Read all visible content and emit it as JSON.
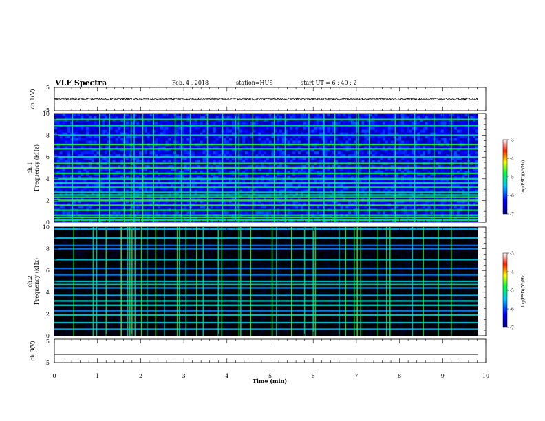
{
  "header": {
    "title": "VLF Spectra",
    "date": "Feb. 4 , 2018",
    "station": "station=HUS",
    "start": "start UT = 6 : 40 : 2"
  },
  "chart_data": [
    {
      "type": "line",
      "panel": "ch1-waveform",
      "ylabel": "ch.1(V)",
      "ylim": [
        -5,
        5
      ],
      "yticks": [
        "5",
        "-5"
      ],
      "x_range": [
        0,
        10
      ],
      "series": [
        {
          "values_description_level": 0,
          "amplitude": 0.45
        }
      ]
    },
    {
      "type": "heatmap",
      "panel": "ch1-spectrogram",
      "ylabel": "ch.1\nFrequency (kHz)",
      "ylim": [
        0,
        10
      ],
      "yticks": [
        "0",
        "2",
        "4",
        "6",
        "8",
        "10"
      ],
      "x_range": [
        0,
        9.82
      ],
      "colorbar": {
        "label": "log(PSD)(V²/Hz)",
        "range": [
          -7,
          -3
        ],
        "ticks": [
          "-3",
          "-4",
          "-5",
          "-6",
          "-7"
        ]
      },
      "background_level": -6.4,
      "bands_khz": [
        0.2,
        0.45,
        0.65,
        1.1,
        1.55,
        2.0,
        2.3,
        2.5,
        2.75,
        3.2,
        3.6,
        4.0,
        4.5,
        5.0,
        5.4,
        6.0,
        6.75,
        7.15,
        8.0,
        8.9,
        9.45
      ],
      "spikes_min": [
        0.42,
        1.05,
        1.28,
        1.62,
        1.78,
        1.85,
        2.05,
        2.3,
        2.8,
        2.95,
        3.15,
        3.55,
        3.9,
        4.2,
        4.28,
        4.6,
        5.1,
        5.35,
        5.9,
        6.25,
        6.5,
        7.0,
        7.05,
        7.3,
        7.9,
        8.35,
        8.8,
        9.2,
        9.6
      ]
    },
    {
      "type": "heatmap",
      "panel": "ch2-spectrogram",
      "ylabel": "ch.2\nFrequency (kHz)",
      "ylim": [
        0,
        10
      ],
      "yticks": [
        "0",
        "2",
        "4",
        "6",
        "8",
        "10"
      ],
      "x_range": [
        0,
        9.82
      ],
      "colorbar": {
        "label": "log(PSD)(V²/Hz)",
        "range": [
          -7,
          -3
        ],
        "ticks": [
          "-3",
          "-4",
          "-5",
          "-6",
          "-7"
        ]
      },
      "background_level": -7,
      "bands_khz": [
        0.6,
        1.2,
        1.9,
        2.3,
        2.8,
        3.2,
        3.7,
        4.4,
        4.7,
        5.0,
        5.6,
        6.2,
        7.0,
        8.0,
        8.3,
        9.0,
        9.8
      ],
      "spikes_min": [
        0.45,
        0.9,
        0.98,
        1.2,
        1.55,
        1.7,
        1.75,
        1.8,
        1.87,
        2.02,
        2.15,
        2.35,
        2.55,
        2.85,
        2.9,
        3.05,
        3.3,
        3.45,
        3.8,
        3.88,
        4.28,
        4.32,
        4.55,
        5.05,
        5.15,
        5.5,
        5.8,
        6.0,
        6.05,
        6.6,
        6.75,
        6.95,
        7.02,
        7.1,
        7.5,
        7.7,
        7.78,
        8.3,
        8.55,
        8.9,
        9.2
      ]
    },
    {
      "type": "line",
      "panel": "ch3-waveform",
      "ylabel": "ch.3(V)",
      "ylim": [
        -5,
        5
      ],
      "yticks": [
        "5",
        "-5"
      ],
      "x_range": [
        0,
        9.82
      ],
      "series": [
        {
          "level": -1.5
        }
      ]
    }
  ],
  "xaxis": {
    "label": "Time (min)",
    "ticks": [
      "0",
      "1",
      "2",
      "3",
      "4",
      "5",
      "6",
      "7",
      "8",
      "9",
      "10"
    ],
    "xlim": [
      0,
      10
    ]
  },
  "colors": {
    "axis": "#000000",
    "background": "#ffffff"
  }
}
